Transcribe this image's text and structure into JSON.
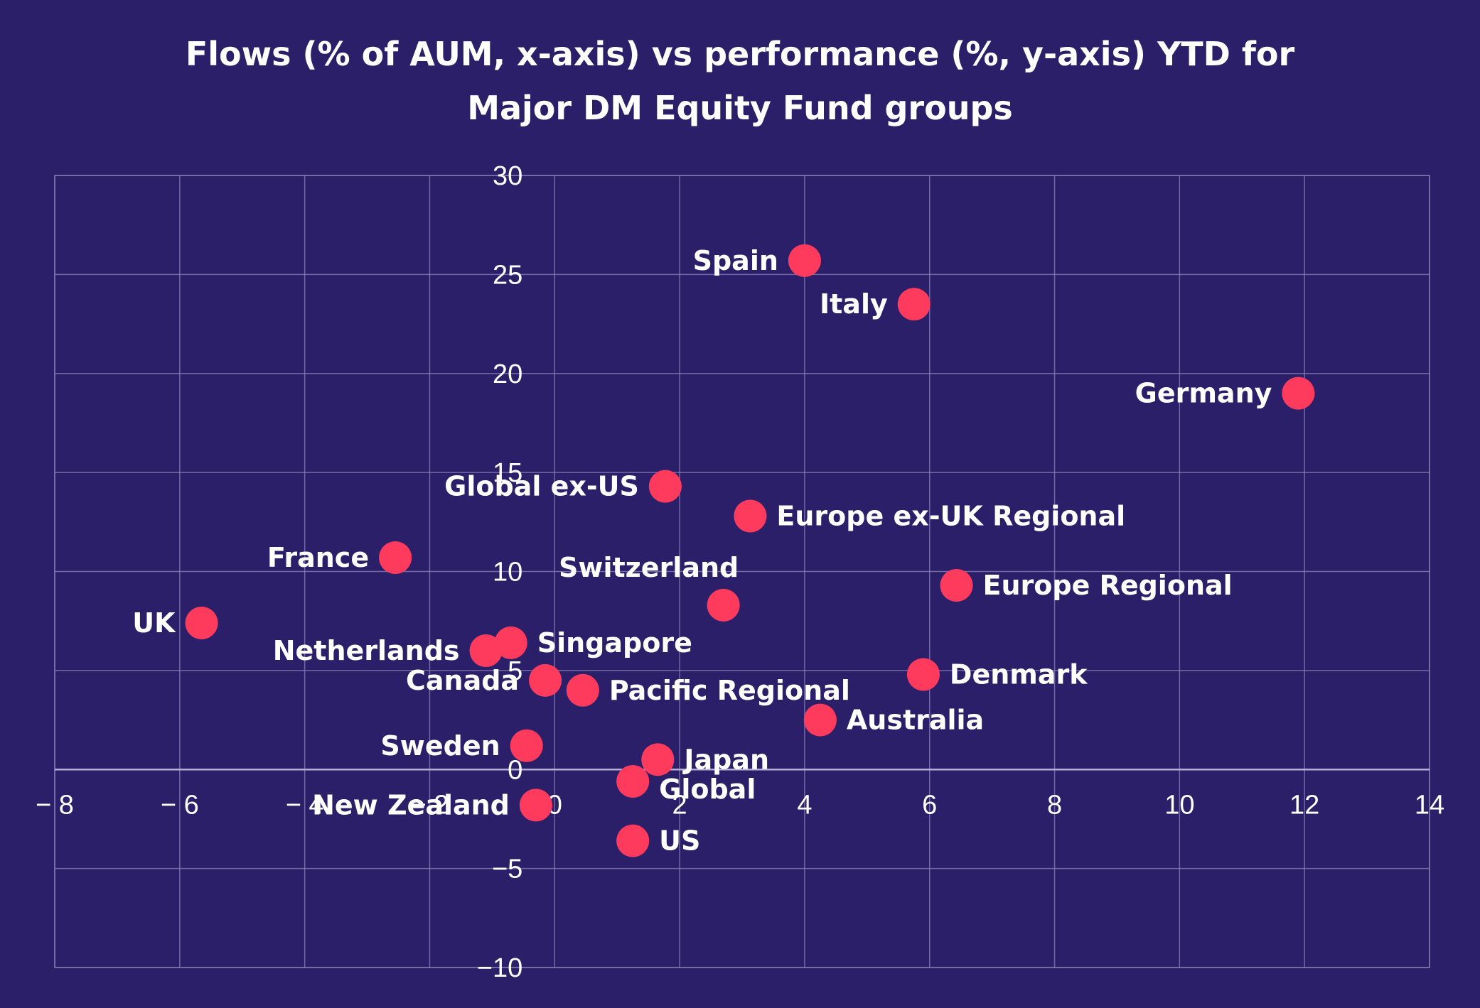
{
  "colors": {
    "background": "#2b1f69",
    "point": "#fe3b5c",
    "text": "#ffffff",
    "grid": "#8a82b8"
  },
  "chart_data": {
    "type": "scatter",
    "title_lines": [
      "Flows (% of AUM, x-axis) vs performance (%, y-axis) YTD for",
      "Major DM Equity Fund groups"
    ],
    "xlim": [
      -8,
      14
    ],
    "ylim": [
      -10,
      30
    ],
    "xticks": [
      -8,
      -6,
      -4,
      -2,
      0,
      2,
      4,
      6,
      8,
      10,
      12,
      14
    ],
    "yticks": [
      -10,
      -5,
      0,
      5,
      10,
      15,
      20,
      25,
      30
    ],
    "grid": true,
    "points": [
      {
        "name": "Spain",
        "x": 4.0,
        "y": 25.7,
        "label_side": "left"
      },
      {
        "name": "Italy",
        "x": 5.75,
        "y": 23.5,
        "label_side": "left"
      },
      {
        "name": "Germany",
        "x": 11.9,
        "y": 19.0,
        "label_side": "left"
      },
      {
        "name": "Global ex-US",
        "x": 1.77,
        "y": 14.3,
        "label_side": "left"
      },
      {
        "name": "Europe ex-UK Regional",
        "x": 3.13,
        "y": 12.8,
        "label_side": "right"
      },
      {
        "name": "France",
        "x": -2.55,
        "y": 10.7,
        "label_side": "left"
      },
      {
        "name": "Switzerland",
        "x": 2.7,
        "y": 8.3,
        "label_side": "above"
      },
      {
        "name": "Europe Regional",
        "x": 6.43,
        "y": 9.3,
        "label_side": "right"
      },
      {
        "name": "UK",
        "x": -5.65,
        "y": 7.4,
        "label_side": "left"
      },
      {
        "name": "Netherlands",
        "x": -1.1,
        "y": 6.0,
        "label_side": "left"
      },
      {
        "name": "Singapore",
        "x": -0.7,
        "y": 6.4,
        "label_side": "right"
      },
      {
        "name": "Canada",
        "x": -0.15,
        "y": 4.5,
        "label_side": "left"
      },
      {
        "name": "Pacific Regional",
        "x": 0.45,
        "y": 4.0,
        "label_side": "right"
      },
      {
        "name": "Denmark",
        "x": 5.9,
        "y": 4.8,
        "label_side": "right"
      },
      {
        "name": "Australia",
        "x": 4.25,
        "y": 2.5,
        "label_side": "right"
      },
      {
        "name": "Sweden",
        "x": -0.45,
        "y": 1.2,
        "label_side": "left"
      },
      {
        "name": "Japan",
        "x": 1.65,
        "y": 0.5,
        "label_side": "right"
      },
      {
        "name": "Global",
        "x": 1.25,
        "y": -0.6,
        "label_side": "right-below"
      },
      {
        "name": "New Zealand",
        "x": -0.3,
        "y": -1.8,
        "label_side": "left"
      },
      {
        "name": "US",
        "x": 1.25,
        "y": -3.6,
        "label_side": "right"
      }
    ]
  }
}
